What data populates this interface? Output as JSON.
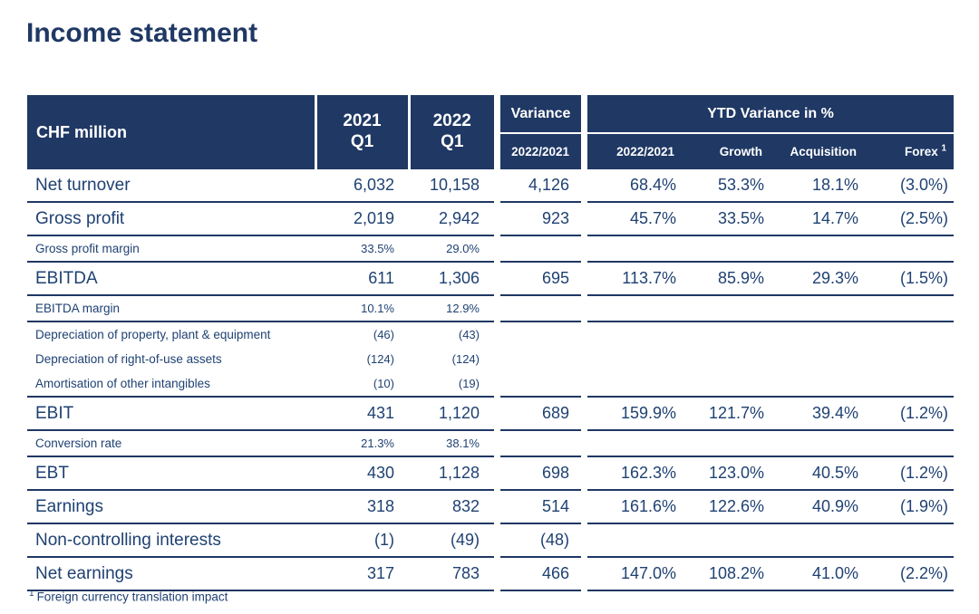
{
  "page": {
    "title": "Income statement"
  },
  "table": {
    "header": {
      "chf": "CHF million",
      "y2021": {
        "line1": "2021",
        "line2": "Q1"
      },
      "y2022": {
        "line1": "2022",
        "line2": "Q1"
      },
      "variance": "Variance",
      "variance_sub": "2022/2021",
      "ytd": "YTD Variance in %",
      "ytd_sub_1": "2022/2021",
      "ytd_sub_2": "Growth",
      "ytd_sub_3": "Acquisition",
      "ytd_sub_4": "Forex",
      "forex_superscript": "1"
    },
    "rows": [
      {
        "label": "Net turnover",
        "style": "major",
        "divider": true,
        "values": [
          "6,032",
          "10,158",
          "4,126",
          "68.4%",
          "53.3%",
          "18.1%",
          "(3.0%)"
        ]
      },
      {
        "label": "Gross profit",
        "style": "major",
        "divider": true,
        "values": [
          "2,019",
          "2,942",
          "923",
          "45.7%",
          "33.5%",
          "14.7%",
          "(2.5%)"
        ]
      },
      {
        "label": "Gross profit margin",
        "style": "small",
        "divider": true,
        "values": [
          "33.5%",
          "29.0%",
          "",
          "",
          "",
          "",
          ""
        ]
      },
      {
        "label": "EBITDA",
        "style": "major",
        "divider": true,
        "values": [
          "611",
          "1,306",
          "695",
          "113.7%",
          "85.9%",
          "29.3%",
          "(1.5%)"
        ]
      },
      {
        "label": "EBITDA margin",
        "style": "small",
        "divider": true,
        "values": [
          "10.1%",
          "12.9%",
          "",
          "",
          "",
          "",
          ""
        ]
      },
      {
        "label": "Depreciation of property, plant & equipment",
        "style": "small",
        "divider": false,
        "values": [
          "(46)",
          "(43)",
          "",
          "",
          "",
          "",
          ""
        ]
      },
      {
        "label": "Depreciation of right-of-use assets",
        "style": "small",
        "divider": false,
        "values": [
          "(124)",
          "(124)",
          "",
          "",
          "",
          "",
          ""
        ]
      },
      {
        "label": "Amortisation of other intangibles",
        "style": "small",
        "divider": true,
        "values": [
          "(10)",
          "(19)",
          "",
          "",
          "",
          "",
          ""
        ]
      },
      {
        "label": "EBIT",
        "style": "major",
        "divider": true,
        "values": [
          "431",
          "1,120",
          "689",
          "159.9%",
          "121.7%",
          "39.4%",
          "(1.2%)"
        ]
      },
      {
        "label": "Conversion rate",
        "style": "small",
        "divider": true,
        "values": [
          "21.3%",
          "38.1%",
          "",
          "",
          "",
          "",
          ""
        ]
      },
      {
        "label": "EBT",
        "style": "major",
        "divider": true,
        "values": [
          "430",
          "1,128",
          "698",
          "162.3%",
          "123.0%",
          "40.5%",
          "(1.2%)"
        ]
      },
      {
        "label": "Earnings",
        "style": "major",
        "divider": true,
        "values": [
          "318",
          "832",
          "514",
          "161.6%",
          "122.6%",
          "40.9%",
          "(1.9%)"
        ]
      },
      {
        "label": "Non-controlling interests",
        "style": "major",
        "divider": true,
        "values": [
          "(1)",
          "(49)",
          "(48)",
          "",
          "",
          "",
          ""
        ]
      },
      {
        "label": "Net earnings",
        "style": "major",
        "divider": true,
        "values": [
          "317",
          "783",
          "466",
          "147.0%",
          "108.2%",
          "41.0%",
          "(2.2%)"
        ]
      }
    ]
  },
  "footnote": {
    "marker": "1",
    "text": "Foreign currency translation impact"
  },
  "colors": {
    "navy_header": "#1F3864",
    "navy_text": "#1F4172",
    "background": "#ffffff"
  }
}
